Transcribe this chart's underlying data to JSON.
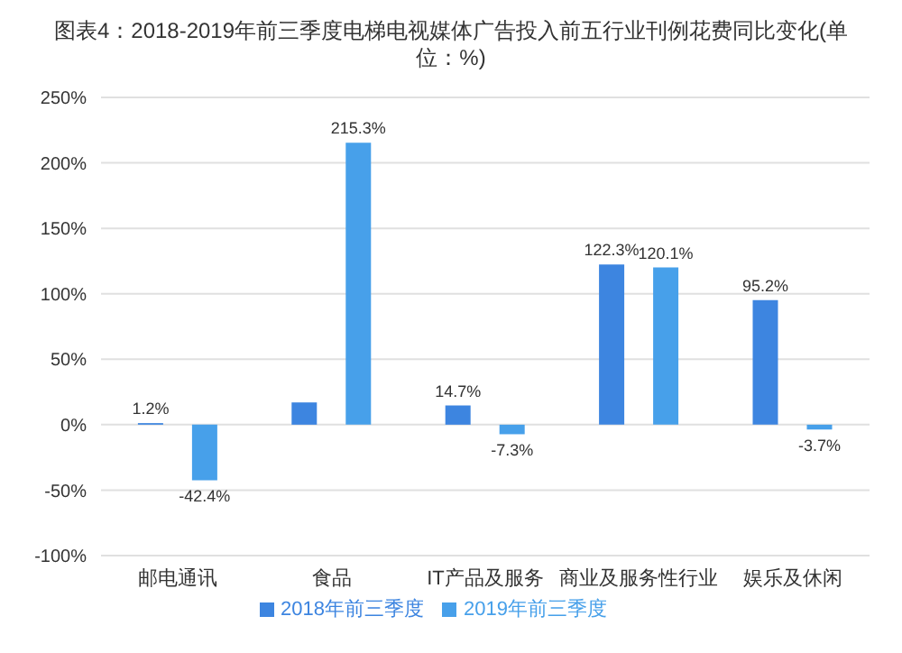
{
  "chart_data": {
    "type": "bar",
    "title": "图表4：2018-2019年前三季度电梯电视媒体广告投入前五行业刊例花费同比变化(单位：%)",
    "categories": [
      "邮电通讯",
      "食品",
      "IT产品及服务",
      "商业及服务性行业",
      "娱乐及休闲"
    ],
    "series": [
      {
        "name": "2018年前三季度",
        "color": "#3d85e0",
        "values": [
          1.2,
          17,
          14.7,
          122.3,
          95.2
        ],
        "value_labels": [
          "1.2%",
          null,
          "14.7%",
          "122.3%",
          "95.2%"
        ]
      },
      {
        "name": "2019年前三季度",
        "color": "#47a0ea",
        "values": [
          -42.4,
          215.3,
          -7.3,
          120.1,
          -3.7
        ],
        "value_labels": [
          "-42.4%",
          "215.3%",
          "-7.3%",
          "120.1%",
          "-3.7%"
        ]
      }
    ],
    "ylim": [
      -100,
      250
    ],
    "yticks": [
      {
        "value": -100,
        "label": "-100%"
      },
      {
        "value": -50,
        "label": "-50%"
      },
      {
        "value": 0,
        "label": "0%"
      },
      {
        "value": 50,
        "label": "50%"
      },
      {
        "value": 100,
        "label": "100%"
      },
      {
        "value": 150,
        "label": "150%"
      },
      {
        "value": 200,
        "label": "200%"
      },
      {
        "value": 250,
        "label": "250%"
      }
    ],
    "grid": "y",
    "legend": "bottom"
  }
}
